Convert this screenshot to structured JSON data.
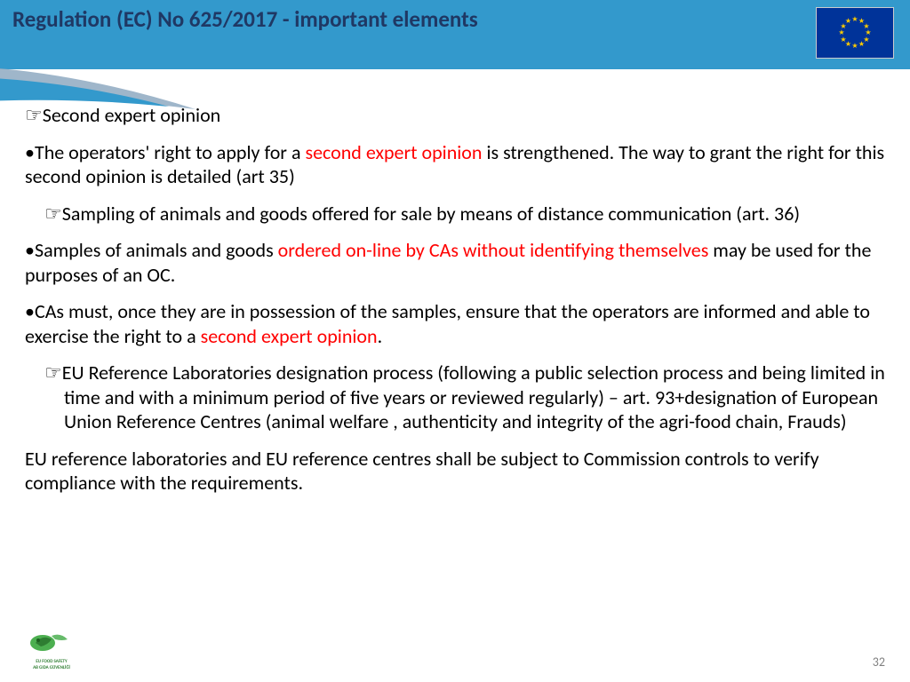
{
  "header": {
    "title": "Regulation (EC) No 625/2017 - important elements",
    "background_color": "#3399cc",
    "title_color": "#1f3864",
    "flag_bg": "#003399",
    "star_color": "#ffcc00"
  },
  "body": {
    "text_color": "#000000",
    "highlight_color": "#ff0000",
    "fontsize": 22,
    "items": [
      {
        "marker": "☞",
        "indent": false,
        "runs": [
          {
            "t": "Second expert opinion"
          }
        ]
      },
      {
        "marker": "•",
        "indent": false,
        "runs": [
          {
            "t": "The operators' right to apply for a "
          },
          {
            "t": "second expert opinion",
            "red": true
          },
          {
            "t": " is strengthened. The way to grant the right for this second opinion is detailed (art 35)"
          }
        ]
      },
      {
        "marker": "☞",
        "indent": true,
        "runs": [
          {
            "t": "Sampling of animals and goods offered for sale by means of distance communication (art. 36)"
          }
        ]
      },
      {
        "marker": "•",
        "indent": false,
        "runs": [
          {
            "t": "Samples of animals and goods "
          },
          {
            "t": "ordered on-line by CAs without identifying themselves",
            "red": true
          },
          {
            "t": " may be used for the purposes of an OC."
          }
        ]
      },
      {
        "marker": "•",
        "indent": false,
        "runs": [
          {
            "t": "CAs must, once they are in possession of the samples, ensure that the operators are informed and able to exercise the right to a "
          },
          {
            "t": "second expert opinion",
            "red": true
          },
          {
            "t": "."
          }
        ]
      },
      {
        "marker": "☞",
        "indent": true,
        "runs": [
          {
            "t": "EU Reference Laboratories designation process (following a public selection process and being limited in time and with a minimum period of five years or reviewed regularly) – art. 93+designation of European Union Reference Centres (animal welfare , authenticity and integrity of the agri-food chain, Frauds)"
          }
        ]
      },
      {
        "marker": "",
        "indent": false,
        "runs": [
          {
            "t": "EU reference laboratories and EU reference centres shall be subject to Commission controls to verify compliance with the requirements."
          }
        ]
      }
    ]
  },
  "footer": {
    "slide_number": "32",
    "slide_number_color": "#808080",
    "logo_line1": "EU FOOD SAFETY",
    "logo_line2": "AB GIDA GÜVENLİĞİ",
    "logo_color": "#2e7d32"
  },
  "swoosh": {
    "outer_color": "#8ea9c1",
    "inner_color": "#3399cc"
  }
}
